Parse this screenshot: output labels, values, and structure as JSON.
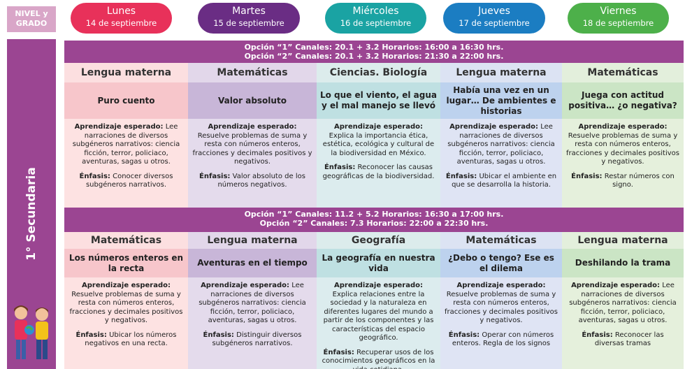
{
  "header": {
    "nivel_label": "NIVEL y GRADO",
    "grade": "1° Secundaria"
  },
  "days": [
    {
      "name": "Lunes",
      "date": "14 de septiembre",
      "color": "#e8315a"
    },
    {
      "name": "Martes",
      "date": "15 de septiembre",
      "color": "#6a2d84"
    },
    {
      "name": "Miércoles",
      "date": "16 de septiembre",
      "color": "#1aa3a3"
    },
    {
      "name": "Jueves",
      "date": "17 de septiembre",
      "color": "#1b7dc2"
    },
    {
      "name": "Viernes",
      "date": "18 de septiembre",
      "color": "#4db04a"
    }
  ],
  "column_colors": [
    {
      "subject": "#fcdfe0",
      "title": "#f7c6cb",
      "body": "#fde2e2"
    },
    {
      "subject": "#e2d7ea",
      "title": "#c8b6d8",
      "body": "#e4dbec"
    },
    {
      "subject": "#dcecec",
      "title": "#bfe0e2",
      "body": "#dcecee"
    },
    {
      "subject": "#dce3f3",
      "title": "#bdd2ee",
      "body": "#dfe4f4"
    },
    {
      "subject": "#e3efdc",
      "title": "#cbe5c5",
      "body": "#e5f0dc"
    }
  ],
  "blocks": [
    {
      "option1": "Opción “1” Canales: 20.1 + 3.2 Horarios: 16:00 a 16:30 hrs.",
      "option2": "Opción “2” Canales: 20.1 + 3.2 Horarios: 21:30 a 22:00 hrs.",
      "classes": [
        {
          "subject": "Lengua materna",
          "title": "Puro cuento",
          "aprendizaje_label": "Aprendizaje esperado:",
          "aprendizaje": "Lee narraciones de diversos subgéneros narrativos: ciencia ficción, terror, policiaco, aventuras, sagas u otros.",
          "enfasis_label": "Énfasis:",
          "enfasis": "Conocer diversos subgéneros narrativos."
        },
        {
          "subject": "Matemáticas",
          "title": "Valor absoluto",
          "aprendizaje_label": "Aprendizaje esperado:",
          "aprendizaje": "Resuelve problemas de suma y resta con números enteros, fracciones y decimales positivos y negativos.",
          "enfasis_label": "Énfasis:",
          "enfasis": "Valor absoluto de los números negativos."
        },
        {
          "subject": "Ciencias. Biología",
          "title": "Lo que el viento, el agua y el mal manejo se llevó",
          "aprendizaje_label": "Aprendizaje esperado:",
          "aprendizaje": "Explica la importancia ética, estética, ecológica y cultural de la biodiversidad en México.",
          "enfasis_label": "Énfasis:",
          "enfasis": "Reconocer las causas geográficas de la biodiversidad."
        },
        {
          "subject": "Lengua materna",
          "title": "Había una vez en un lugar… De ambientes e historias",
          "aprendizaje_label": "Aprendizaje esperado:",
          "aprendizaje": "Lee narraciones de diversos subgéneros narrativos: ciencia ficción, terror, policiaco, aventuras, sagas u otros.",
          "enfasis_label": "Énfasis:",
          "enfasis": "Ubicar el ambiente en que se desarrolla la historia."
        },
        {
          "subject": "Matemáticas",
          "title": "Juega con actitud positiva… ¿o negativa?",
          "aprendizaje_label": "Aprendizaje esperado:",
          "aprendizaje": "Resuelve problemas de suma y resta con números enteros, fracciones y decimales positivos y negativos.",
          "enfasis_label": "Énfasis:",
          "enfasis": "Restar números con signo."
        }
      ]
    },
    {
      "option1": "Opción “1” Canales: 11.2 + 5.2 Horarios: 16:30 a 17:00 hrs.",
      "option2": "Opción “2” Canales: 7.3 Horarios: 22:00 a 22:30 hrs.",
      "classes": [
        {
          "subject": "Matemáticas",
          "title": "Los números enteros en la recta",
          "aprendizaje_label": "Aprendizaje esperado:",
          "aprendizaje": "Resuelve problemas de suma y resta con números enteros, fracciones y decimales positivos y negativos.",
          "enfasis_label": "Énfasis:",
          "enfasis": "Ubicar los números negativos en una recta."
        },
        {
          "subject": "Lengua materna",
          "title": "Aventuras en el tiempo",
          "aprendizaje_label": "Aprendizaje esperado:",
          "aprendizaje": "Lee narraciones de diversos subgéneros narrativos: ciencia ficción, terror, policiaco, aventuras, sagas u otros.",
          "enfasis_label": "Énfasis:",
          "enfasis": "Distinguir diversos subgéneros narrativos."
        },
        {
          "subject": "Geografía",
          "title": "La geografía en nuestra vida",
          "aprendizaje_label": "Aprendizaje esperado:",
          "aprendizaje": "Explica relaciones entre la sociedad y la naturaleza en diferentes lugares del mundo a partir de los componentes y las características del espacio geográfico.",
          "enfasis_label": "Énfasis:",
          "enfasis": "Recuperar usos de los conocimientos geográficos en la vida cotidiana."
        },
        {
          "subject": "Matemáticas",
          "title": "¿Debo o tengo? Ese es el dilema",
          "aprendizaje_label": "Aprendizaje esperado:",
          "aprendizaje": "Resuelve problemas de suma y resta con números enteros, fracciones y decimales positivos y negativos.",
          "enfasis_label": "Énfasis:",
          "enfasis": "Operar con números enteros. Regla de los signos"
        },
        {
          "subject": "Lengua materna",
          "title": "Deshilando la trama",
          "aprendizaje_label": "Aprendizaje esperado:",
          "aprendizaje": "Lee narraciones de diversos subgéneros narrativos: ciencia ficción, terror, policiaco, aventuras, sagas u otros.",
          "enfasis_label": "Énfasis:",
          "enfasis": "Reconocer las diversas tramas"
        }
      ]
    }
  ]
}
